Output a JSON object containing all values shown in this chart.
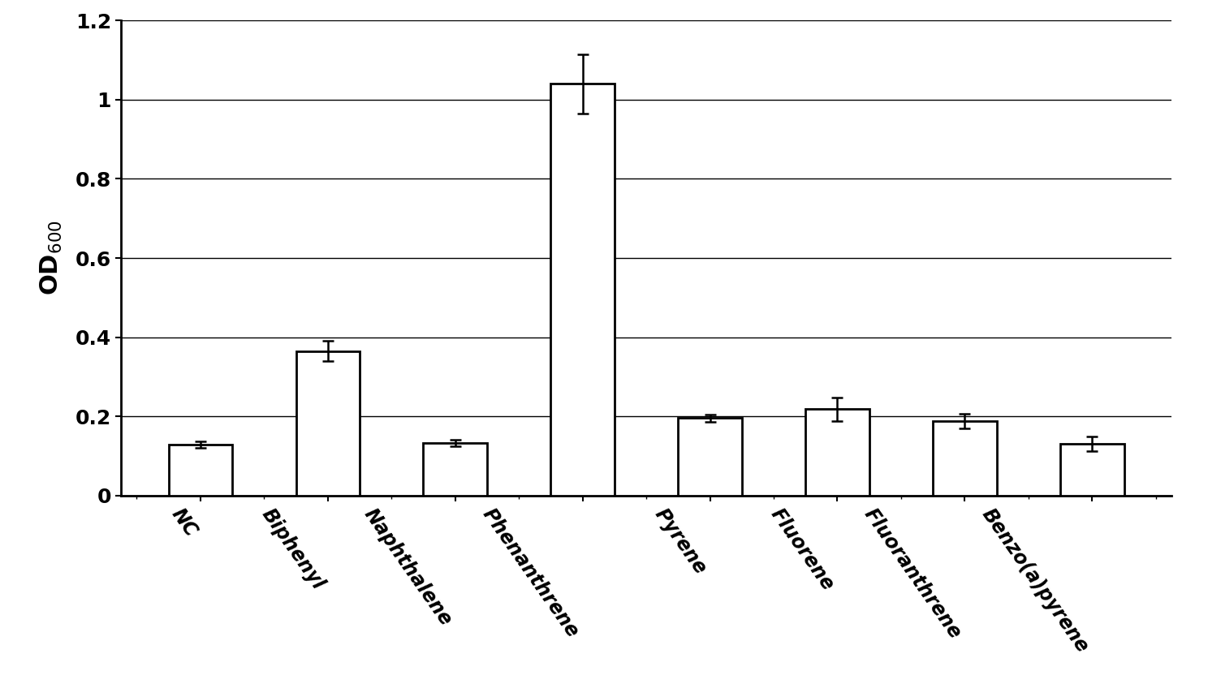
{
  "categories": [
    "NC",
    "Biphenyl",
    "Naphthalene",
    "Phenanthrene",
    "Pyrene",
    "Fluorene",
    "Fluoranthrene",
    "Benzo(a)pyrene"
  ],
  "values": [
    0.128,
    0.365,
    0.132,
    1.04,
    0.195,
    0.218,
    0.188,
    0.13
  ],
  "errors": [
    0.008,
    0.025,
    0.008,
    0.075,
    0.01,
    0.03,
    0.018,
    0.018
  ],
  "bar_color": "#ffffff",
  "bar_edgecolor": "#000000",
  "bar_linewidth": 2.0,
  "errorbar_color": "#000000",
  "errorbar_linewidth": 1.8,
  "errorbar_capsize": 5,
  "ylabel": "OD$_{600}$",
  "ylabel_fontsize": 22,
  "ylabel_fontweight": "bold",
  "ytick_fontsize": 18,
  "xtick_fontsize": 17,
  "ylim": [
    0,
    1.2
  ],
  "yticks": [
    0,
    0.2,
    0.4,
    0.6,
    0.8,
    1.0,
    1.2
  ],
  "ytick_labels": [
    "0",
    "0.2",
    "0.4",
    "0.6",
    "0.8",
    "1",
    "1.2"
  ],
  "grid_color": "#000000",
  "grid_linewidth": 1.0,
  "background_color": "#ffffff",
  "figsize": [
    14.88,
    8.48
  ],
  "dpi": 100,
  "bar_width": 0.5,
  "xlabel_rotation": -55,
  "spine_linewidth": 2.0
}
